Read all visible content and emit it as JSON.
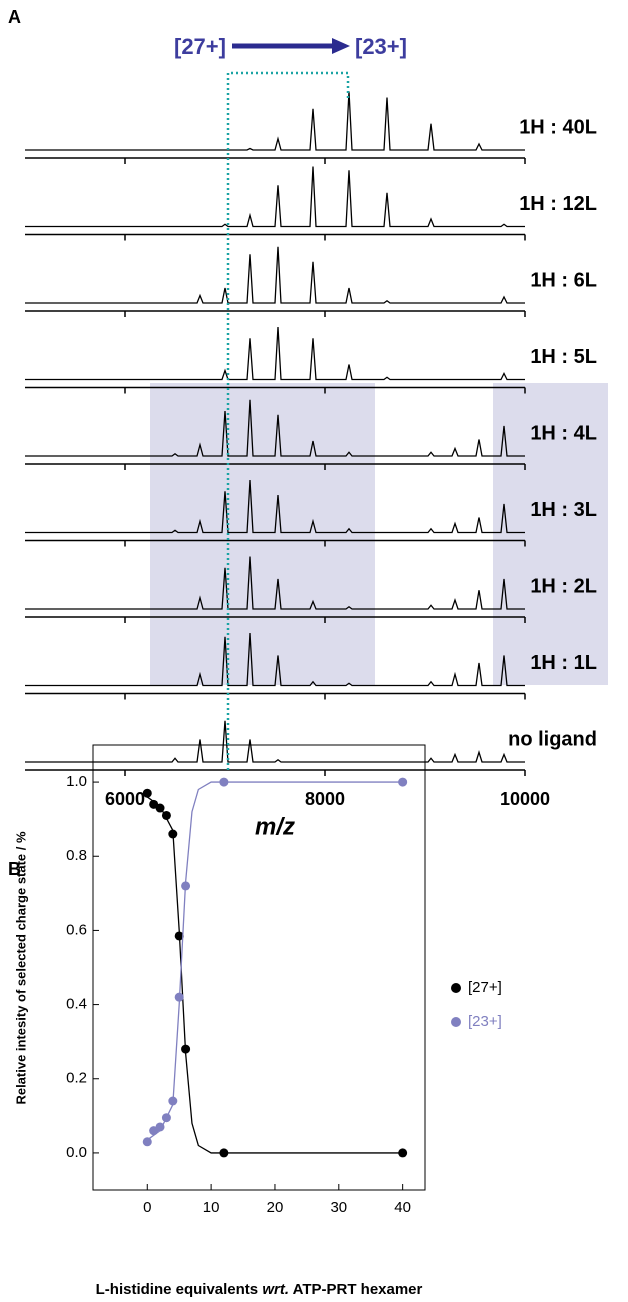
{
  "chart_data": [
    {
      "type": "spectra",
      "panel_label": "A",
      "xlabel": "m/z",
      "annotations": [
        "[27+]",
        "[23+]"
      ],
      "xlim": [
        5000,
        10000
      ],
      "xticks": [
        6000,
        8000,
        10000
      ],
      "x": [
        5000,
        6470,
        6500,
        6530,
        6720,
        6750,
        6780,
        6970,
        7000,
        7030,
        7220,
        7250,
        7280,
        7500,
        7530,
        7560,
        7850,
        7880,
        7910,
        8210,
        8240,
        8270,
        8590,
        8620,
        8650,
        9030,
        9060,
        9090,
        9270,
        9300,
        9330,
        9510,
        9540,
        9570,
        9760,
        9790,
        9820,
        10000
      ],
      "series": [
        {
          "name": "1H : 40L",
          "color": "#000000",
          "values": [
            0,
            0,
            0,
            0,
            0,
            0,
            0,
            0,
            0,
            0,
            0,
            2,
            0,
            0,
            15,
            0,
            0,
            55,
            0,
            0,
            78,
            0,
            0,
            70,
            0,
            0,
            35,
            0,
            0,
            0,
            0,
            0,
            8,
            0,
            0,
            0,
            0,
            0
          ]
        },
        {
          "name": "1H : 12L",
          "color": "#000000",
          "values": [
            0,
            0,
            0,
            0,
            0,
            0,
            0,
            0,
            3,
            0,
            0,
            15,
            0,
            0,
            55,
            0,
            0,
            80,
            0,
            0,
            75,
            0,
            0,
            45,
            0,
            0,
            10,
            0,
            0,
            0,
            0,
            0,
            0,
            0,
            0,
            3,
            0,
            0
          ]
        },
        {
          "name": "1H : 6L",
          "color": "#000000",
          "values": [
            0,
            0,
            0,
            0,
            0,
            10,
            0,
            0,
            20,
            0,
            0,
            65,
            0,
            0,
            75,
            0,
            0,
            55,
            0,
            0,
            20,
            0,
            0,
            3,
            0,
            0,
            0,
            0,
            0,
            0,
            0,
            0,
            0,
            0,
            0,
            8,
            0,
            0
          ]
        },
        {
          "name": "1H : 5L",
          "color": "#000000",
          "values": [
            0,
            0,
            0,
            0,
            0,
            0,
            0,
            0,
            12,
            0,
            0,
            55,
            0,
            0,
            70,
            0,
            0,
            55,
            0,
            0,
            20,
            0,
            0,
            3,
            0,
            0,
            0,
            0,
            0,
            0,
            0,
            0,
            0,
            0,
            0,
            8,
            0,
            0
          ]
        },
        {
          "name": "1H : 4L",
          "color": "#000000",
          "values": [
            0,
            0,
            3,
            0,
            0,
            15,
            0,
            0,
            60,
            0,
            0,
            75,
            0,
            0,
            55,
            0,
            0,
            20,
            0,
            0,
            5,
            0,
            0,
            0,
            0,
            0,
            5,
            0,
            0,
            10,
            0,
            0,
            22,
            0,
            0,
            40,
            0,
            0
          ]
        },
        {
          "name": "1H : 3L",
          "color": "#000000",
          "values": [
            0,
            0,
            3,
            0,
            0,
            15,
            0,
            0,
            55,
            0,
            0,
            70,
            0,
            0,
            50,
            0,
            0,
            15,
            0,
            0,
            5,
            0,
            0,
            0,
            0,
            0,
            5,
            0,
            0,
            12,
            0,
            0,
            20,
            0,
            0,
            38,
            0,
            0
          ]
        },
        {
          "name": "1H : 2L",
          "color": "#000000",
          "values": [
            0,
            0,
            0,
            0,
            0,
            15,
            0,
            0,
            55,
            0,
            0,
            70,
            0,
            0,
            40,
            0,
            0,
            10,
            0,
            0,
            3,
            0,
            0,
            0,
            0,
            0,
            5,
            0,
            0,
            12,
            0,
            0,
            25,
            0,
            0,
            40,
            0,
            0
          ]
        },
        {
          "name": "1H : 1L",
          "color": "#000000",
          "values": [
            0,
            0,
            0,
            0,
            0,
            15,
            0,
            0,
            65,
            0,
            0,
            70,
            0,
            0,
            40,
            0,
            0,
            5,
            0,
            0,
            3,
            0,
            0,
            0,
            0,
            0,
            5,
            0,
            0,
            15,
            0,
            0,
            30,
            0,
            0,
            40,
            0,
            0
          ]
        },
        {
          "name": "no ligand",
          "color": "#000000",
          "values": [
            0,
            0,
            5,
            0,
            0,
            30,
            0,
            0,
            55,
            0,
            0,
            30,
            0,
            0,
            3,
            0,
            0,
            0,
            0,
            0,
            0,
            0,
            0,
            0,
            0,
            0,
            5,
            0,
            0,
            10,
            0,
            0,
            13,
            0,
            0,
            10,
            0,
            0
          ]
        }
      ]
    },
    {
      "type": "scatter",
      "panel_label": "B",
      "xlabel": [
        "L-histidine equivalents ",
        "wrt.",
        " ATP-PRT hexamer"
      ],
      "ylabel": "Relative intesity of selected charge state / %",
      "xlim": [
        -8.5,
        43.5
      ],
      "xticks": [
        0,
        10,
        20,
        30,
        40
      ],
      "ylim": [
        -0.1,
        1.1
      ],
      "yticks": [
        {
          "value": 0,
          "label": "0.0"
        },
        {
          "value": 0.2,
          "label": "0.2"
        },
        {
          "value": 0.4,
          "label": "0.4"
        },
        {
          "value": 0.6,
          "label": "0.6"
        },
        {
          "value": 0.8,
          "label": "0.8"
        },
        {
          "value": 1,
          "label": "1.0"
        }
      ],
      "series": [
        {
          "name": "[27+]",
          "color": "#000000",
          "x": [
            0,
            1,
            2,
            3,
            4,
            5,
            6,
            12,
            40
          ],
          "values": [
            0.97,
            0.94,
            0.93,
            0.91,
            0.86,
            0.585,
            0.28,
            0.0,
            0.0
          ],
          "fit_x": [
            0,
            2,
            4,
            5,
            6,
            7,
            8,
            10,
            12,
            20,
            40
          ],
          "fit_values": [
            0.96,
            0.935,
            0.87,
            0.6,
            0.27,
            0.08,
            0.02,
            0.0,
            0.0,
            0.0,
            0.0
          ]
        },
        {
          "name": "[23+]",
          "color": "#8080c0",
          "x": [
            0,
            1,
            2,
            3,
            4,
            5,
            6,
            12,
            40
          ],
          "values": [
            0.03,
            0.06,
            0.07,
            0.095,
            0.14,
            0.42,
            0.72,
            1.0,
            1.0
          ],
          "fit_x": [
            0,
            2,
            4,
            5,
            6,
            7,
            8,
            10,
            12,
            20,
            40
          ],
          "fit_values": [
            0.035,
            0.06,
            0.13,
            0.4,
            0.73,
            0.92,
            0.98,
            1.0,
            1.0,
            1.0,
            1.0
          ]
        }
      ]
    }
  ]
}
